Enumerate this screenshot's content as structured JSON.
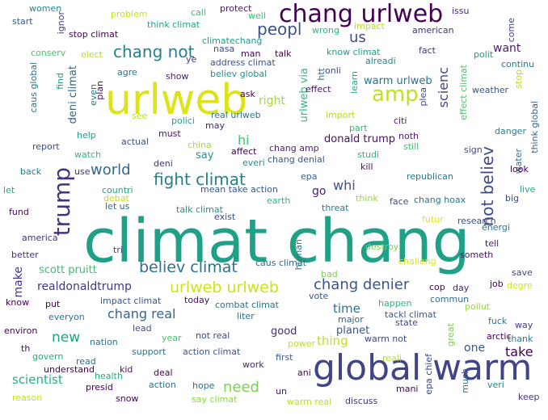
{
  "colors": {
    "background": "#ffffff"
  },
  "words": [
    {
      "text": "climat chang",
      "color": "#1fa187"
    },
    {
      "text": "global warm",
      "color": "#414487"
    },
    {
      "text": "urlweb",
      "color": "#dde318"
    },
    {
      "text": "chang urlweb",
      "color": "#440154"
    },
    {
      "text": "trump",
      "color": "#46337e"
    },
    {
      "text": "amp",
      "color": "#c2df23"
    },
    {
      "text": "fight climat",
      "color": "#277f8e"
    },
    {
      "text": "chang not",
      "color": "#277f8e"
    },
    {
      "text": "believ climat",
      "color": "#2c728e"
    },
    {
      "text": "urlweb urlweb",
      "color": "#d0e11c"
    },
    {
      "text": "chang denier",
      "color": "#3b528b"
    },
    {
      "text": "not believ",
      "color": "#3e4989"
    },
    {
      "text": "peopl",
      "color": "#3b528b"
    },
    {
      "text": "world",
      "color": "#31688e"
    },
    {
      "text": "us",
      "color": "#3e4989"
    },
    {
      "text": "scienc",
      "color": "#404688"
    },
    {
      "text": "need",
      "color": "#7ad151"
    },
    {
      "text": "new",
      "color": "#20a386"
    },
    {
      "text": "hi",
      "color": "#4ac16d"
    },
    {
      "text": "chang real",
      "color": "#31688e"
    },
    {
      "text": "realdonaldtrump",
      "color": "#453781"
    },
    {
      "text": "scientist",
      "color": "#29af7f"
    },
    {
      "text": "whi",
      "color": "#3b528b"
    },
    {
      "text": "take",
      "color": "#440154"
    },
    {
      "text": "thing",
      "color": "#bddf26"
    },
    {
      "text": "time",
      "color": "#2c728e"
    },
    {
      "text": "want",
      "color": "#481a6c"
    },
    {
      "text": "warm urlweb",
      "color": "#2d708e"
    },
    {
      "text": "make",
      "color": "#463480"
    },
    {
      "text": "go",
      "color": "#482071"
    },
    {
      "text": "deni climat",
      "color": "#31688e"
    },
    {
      "text": "right",
      "color": "#a0da39"
    },
    {
      "text": "one",
      "color": "#3b528b"
    },
    {
      "text": "good",
      "color": "#472d7b"
    },
    {
      "text": "planet",
      "color": "#39568c"
    },
    {
      "text": "urlweb via",
      "color": "#35b779"
    },
    {
      "text": "donald trump",
      "color": "#471063"
    },
    {
      "text": "scott pruitt",
      "color": "#3fbc73"
    },
    {
      "text": "say",
      "color": "#1f988b"
    },
    {
      "text": "women",
      "color": "#25858e"
    },
    {
      "text": "start",
      "color": "#375a8c"
    },
    {
      "text": "ignor",
      "color": "#424086"
    },
    {
      "text": "problem",
      "color": "#c8e020"
    },
    {
      "text": "call",
      "color": "#3dbc74"
    },
    {
      "text": "protect",
      "color": "#481769"
    },
    {
      "text": "well",
      "color": "#3bbb75"
    },
    {
      "text": "issu",
      "color": "#472c7a"
    },
    {
      "text": "stop climat",
      "color": "#440154"
    },
    {
      "text": "think climat",
      "color": "#22a785"
    },
    {
      "text": "climatechang",
      "color": "#1e9c89"
    },
    {
      "text": "wrong",
      "color": "#30b47a"
    },
    {
      "text": "impact",
      "color": "#b5de2b"
    },
    {
      "text": "american",
      "color": "#46307e"
    },
    {
      "text": "come",
      "color": "#3f4788"
    },
    {
      "text": "conserv",
      "color": "#4ac16d"
    },
    {
      "text": "elect",
      "color": "#b2dd2d"
    },
    {
      "text": "nasa",
      "color": "#3c4f8a"
    },
    {
      "text": "man",
      "color": "#440154"
    },
    {
      "text": "talk",
      "color": "#440154"
    },
    {
      "text": "know climat",
      "color": "#1f9e89"
    },
    {
      "text": "fact",
      "color": "#46337e"
    },
    {
      "text": "polit",
      "color": "#1f9a8a"
    },
    {
      "text": "ye",
      "color": "#453882"
    },
    {
      "text": "alreadi",
      "color": "#23888e"
    },
    {
      "text": "continu",
      "color": "#2a788e"
    },
    {
      "text": "agre",
      "color": "#2d718e"
    },
    {
      "text": "address climat",
      "color": "#3b528b"
    },
    {
      "text": "onli",
      "color": "#3e4a89"
    },
    {
      "text": "show",
      "color": "#481b6d"
    },
    {
      "text": "believ global",
      "color": "#21918c"
    },
    {
      "text": "caus global",
      "color": "#2c728e"
    },
    {
      "text": "find",
      "color": "#1f9e89"
    },
    {
      "text": "even",
      "color": "#2a768e"
    },
    {
      "text": "plan",
      "color": "#460b5e"
    },
    {
      "text": "ask",
      "color": "#440154"
    },
    {
      "text": "htt",
      "color": "#2e6e8e"
    },
    {
      "text": "learn",
      "color": "#23a983"
    },
    {
      "text": "effect",
      "color": "#481567"
    },
    {
      "text": "plea",
      "color": "#3e4989"
    },
    {
      "text": "effect climat",
      "color": "#50c46a"
    },
    {
      "text": "stop",
      "color": "#c0df25"
    },
    {
      "text": "weather",
      "color": "#3b528b"
    },
    {
      "text": "see",
      "color": "#bddf26"
    },
    {
      "text": "polici",
      "color": "#20a386"
    },
    {
      "text": "real urlweb",
      "color": "#2c728e"
    },
    {
      "text": "import",
      "color": "#b8de29"
    },
    {
      "text": "citi",
      "color": "#481b6d"
    },
    {
      "text": "think global",
      "color": "#32658e"
    },
    {
      "text": "must",
      "color": "#471365"
    },
    {
      "text": "may",
      "color": "#482374"
    },
    {
      "text": "part",
      "color": "#35b779"
    },
    {
      "text": "noth",
      "color": "#481b6d"
    },
    {
      "text": "danger",
      "color": "#27808e"
    },
    {
      "text": "help",
      "color": "#1f9a8a"
    },
    {
      "text": "report",
      "color": "#3e4989"
    },
    {
      "text": "actual",
      "color": "#3b528b"
    },
    {
      "text": "china",
      "color": "#a8db34"
    },
    {
      "text": "chang amp",
      "color": "#482576"
    },
    {
      "text": "still",
      "color": "#46c06f"
    },
    {
      "text": "sign",
      "color": "#3e4989"
    },
    {
      "text": "watch",
      "color": "#34b679"
    },
    {
      "text": "affect",
      "color": "#440154"
    },
    {
      "text": "everi",
      "color": "#23898e"
    },
    {
      "text": "studi",
      "color": "#2fb47c"
    },
    {
      "text": "water",
      "color": "#2d718e"
    },
    {
      "text": "back",
      "color": "#287d8e"
    },
    {
      "text": "use",
      "color": "#46327e"
    },
    {
      "text": "deni",
      "color": "#472f7d"
    },
    {
      "text": "chang denial",
      "color": "#39568c"
    },
    {
      "text": "kill",
      "color": "#48186a"
    },
    {
      "text": "look",
      "color": "#440154"
    },
    {
      "text": "let",
      "color": "#22a884"
    },
    {
      "text": "countri",
      "color": "#20a486"
    },
    {
      "text": "mean take action",
      "color": "#38588c"
    },
    {
      "text": "epa",
      "color": "#32648e"
    },
    {
      "text": "republican",
      "color": "#2a778e"
    },
    {
      "text": "live",
      "color": "#22a785"
    },
    {
      "text": "debat",
      "color": "#c2df23"
    },
    {
      "text": "let us",
      "color": "#2d708e"
    },
    {
      "text": "earth",
      "color": "#35b779"
    },
    {
      "text": "think",
      "color": "#95d840"
    },
    {
      "text": "face",
      "color": "#3e4989"
    },
    {
      "text": "chang hoax",
      "color": "#2a788e"
    },
    {
      "text": "big",
      "color": "#3e4989"
    },
    {
      "text": "fund",
      "color": "#46075a"
    },
    {
      "text": "talk climat",
      "color": "#20938c"
    },
    {
      "text": "threat",
      "color": "#287c8e"
    },
    {
      "text": "energi",
      "color": "#2c728e"
    },
    {
      "text": "exist",
      "color": "#3e4989"
    },
    {
      "text": "futur",
      "color": "#e5e419"
    },
    {
      "text": "research",
      "color": "#3b528b"
    },
    {
      "text": "america",
      "color": "#46317e"
    },
    {
      "text": "tell",
      "color": "#481b6d"
    },
    {
      "text": "better",
      "color": "#46307e"
    },
    {
      "text": "human",
      "color": "#2c728e"
    },
    {
      "text": "tri",
      "color": "#414487"
    },
    {
      "text": "caus climat",
      "color": "#31688e"
    },
    {
      "text": "destroy",
      "color": "#7ad151"
    },
    {
      "text": "challeng",
      "color": "#e1e418"
    },
    {
      "text": "someth",
      "color": "#481467"
    },
    {
      "text": "save",
      "color": "#404688"
    },
    {
      "text": "job",
      "color": "#440154"
    },
    {
      "text": "bad",
      "color": "#7ad151"
    },
    {
      "text": "cop",
      "color": "#440154"
    },
    {
      "text": "day",
      "color": "#481f70"
    },
    {
      "text": "degre",
      "color": "#d8e219"
    },
    {
      "text": "commun",
      "color": "#2e6f8e"
    },
    {
      "text": "know",
      "color": "#440154"
    },
    {
      "text": "impact climat",
      "color": "#3b528b"
    },
    {
      "text": "today",
      "color": "#471063"
    },
    {
      "text": "put",
      "color": "#440154"
    },
    {
      "text": "pollut",
      "color": "#95d840"
    },
    {
      "text": "happen",
      "color": "#2fb47c"
    },
    {
      "text": "everyon",
      "color": "#2c728e"
    },
    {
      "text": "combat climat",
      "color": "#2c728e"
    },
    {
      "text": "vote",
      "color": "#3a538b"
    },
    {
      "text": "tackl climat",
      "color": "#38588c"
    },
    {
      "text": "fuck",
      "color": "#2a778e"
    },
    {
      "text": "environ",
      "color": "#440154"
    },
    {
      "text": "lead",
      "color": "#3c508b"
    },
    {
      "text": "liter",
      "color": "#2c728e"
    },
    {
      "text": "major",
      "color": "#33638d"
    },
    {
      "text": "state",
      "color": "#3e4989"
    },
    {
      "text": "way",
      "color": "#443983"
    },
    {
      "text": "nation",
      "color": "#2c728e"
    },
    {
      "text": "year",
      "color": "#4ac16d"
    },
    {
      "text": "not real",
      "color": "#3e4989"
    },
    {
      "text": "warm not",
      "color": "#3e4989"
    },
    {
      "text": "arctic",
      "color": "#440154"
    },
    {
      "text": "thank",
      "color": "#2a788e"
    },
    {
      "text": "th",
      "color": "#440154"
    },
    {
      "text": "read",
      "color": "#2d718e"
    },
    {
      "text": "support",
      "color": "#2c728e"
    },
    {
      "text": "action climat",
      "color": "#3b528b"
    },
    {
      "text": "power",
      "color": "#c2df23"
    },
    {
      "text": "govern",
      "color": "#25ab82"
    },
    {
      "text": "understand",
      "color": "#440154"
    },
    {
      "text": "work",
      "color": "#481d6f"
    },
    {
      "text": "first",
      "color": "#38588c"
    },
    {
      "text": "great",
      "color": "#7ad151"
    },
    {
      "text": "health",
      "color": "#27ad81"
    },
    {
      "text": "kid",
      "color": "#481769"
    },
    {
      "text": "deal",
      "color": "#440154"
    },
    {
      "text": "ani",
      "color": "#440154"
    },
    {
      "text": "reali",
      "color": "#b5de2b"
    },
    {
      "text": "epa chief",
      "color": "#3e4989"
    },
    {
      "text": "much",
      "color": "#2c728e"
    },
    {
      "text": "veri",
      "color": "#25848e"
    },
    {
      "text": "presid",
      "color": "#440154"
    },
    {
      "text": "action",
      "color": "#2c728e"
    },
    {
      "text": "hope",
      "color": "#2c728e"
    },
    {
      "text": "un",
      "color": "#481769"
    },
    {
      "text": "mani",
      "color": "#440154"
    },
    {
      "text": "keep",
      "color": "#46337e"
    },
    {
      "text": "reason",
      "color": "#c2df23"
    },
    {
      "text": "snow",
      "color": "#440154"
    },
    {
      "text": "say climat",
      "color": "#8fd744"
    },
    {
      "text": "warm real",
      "color": "#b5de2b"
    },
    {
      "text": "discuss",
      "color": "#46327e"
    }
  ]
}
